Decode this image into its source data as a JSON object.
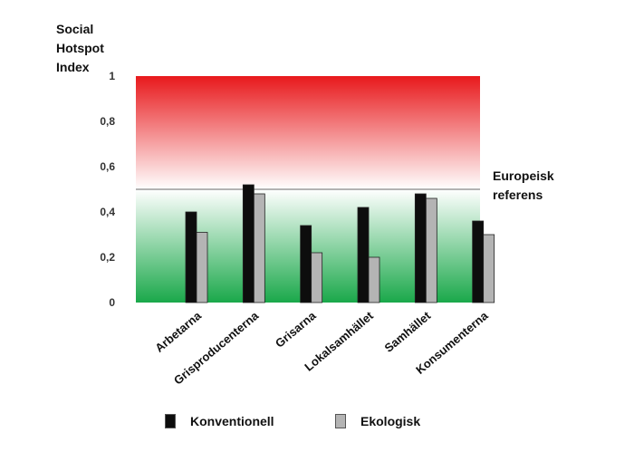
{
  "chart_data": {
    "type": "bar",
    "ylabel": "Social Hotspot Index",
    "ylabel_lines": [
      "Social",
      "Hotspot",
      "Index"
    ],
    "ylim": [
      0,
      1
    ],
    "yticks": [
      0,
      0.2,
      0.4,
      0.6,
      0.8,
      1
    ],
    "ytick_labels": [
      "0",
      "0,2",
      "0,4",
      "0,6",
      "0,8",
      "1"
    ],
    "categories": [
      "Arbetarna",
      "Grisproducenterna",
      "Grisarna",
      "Lokalsamhället",
      "Samhället",
      "Konsumenterna"
    ],
    "series": [
      {
        "name": "Konventionell",
        "color": "#0d0d0d",
        "values": [
          0.4,
          0.52,
          0.34,
          0.42,
          0.48,
          0.36
        ]
      },
      {
        "name": "Ekologisk",
        "color": "#b4b4b4",
        "values": [
          0.31,
          0.48,
          0.22,
          0.2,
          0.46,
          0.3
        ]
      }
    ],
    "reference": {
      "value": 0.5,
      "label_lines": [
        "Europeisk",
        "referens"
      ]
    },
    "background_gradient": {
      "top": "#e8191c",
      "middle": "#ffffff",
      "bottom": "#1aa84a"
    },
    "legend_position": "bottom",
    "grid": false
  }
}
